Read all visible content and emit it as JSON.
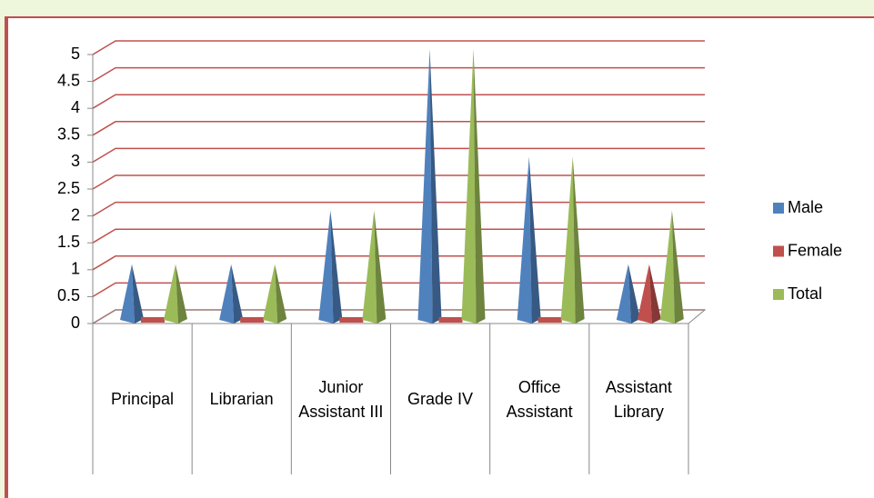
{
  "chart_data": {
    "type": "bar",
    "categories": [
      "Principal",
      "Librarian",
      "Junior Assistant III",
      "Grade IV",
      "Office Assistant",
      "Assistant Library"
    ],
    "series": [
      {
        "name": "Male",
        "color": "#4f81bd",
        "values": [
          1,
          1,
          2,
          5,
          3,
          1
        ]
      },
      {
        "name": "Female",
        "color": "#c0504d",
        "values": [
          0,
          0,
          0,
          0,
          0,
          1
        ]
      },
      {
        "name": "Total",
        "color": "#9bbb59",
        "values": [
          1,
          1,
          2,
          5,
          3,
          2
        ]
      }
    ],
    "ylim": [
      0,
      5
    ],
    "yticks": [
      0,
      0.5,
      1,
      1.5,
      2,
      2.5,
      3,
      3.5,
      4,
      4.5,
      5
    ],
    "grid": true,
    "legend": "right"
  }
}
